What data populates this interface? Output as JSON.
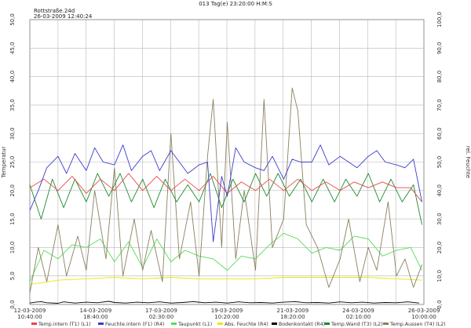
{
  "header": {
    "title": "013 Tag(e) 23:20:00 H:M:S",
    "file": "Rottstraße.24d",
    "date": "26-03-2009 12:40:24"
  },
  "chart_data": {
    "type": "line",
    "title": "013 Tag(e) 23:20:00 H:M:S",
    "ylabel_left": "Temperatur",
    "ylabel_right": "rel. Feuchte",
    "ylim_left": [
      0,
      50
    ],
    "ylim_right": [
      0,
      100
    ],
    "yticks_left": [
      "0,0",
      "5,0",
      "10,0",
      "15,0",
      "20,0",
      "25,0",
      "30,0",
      "35,0",
      "40,0",
      "45,0",
      "50,0"
    ],
    "yticks_right": [
      "0,0",
      "10,0",
      "20,0",
      "30,0",
      "40,0",
      "50,0",
      "60,0",
      "70,0",
      "80,0",
      "90,0",
      "100,0"
    ],
    "xlim_days": [
      0,
      13.97
    ],
    "x_labels": [
      {
        "date": "12-03-2009",
        "time": "10:40:00",
        "day": 0
      },
      {
        "date": "14-03-2009",
        "time": "18:40:00",
        "day": 2.333
      },
      {
        "date": "17-03-2009",
        "time": "02:30:00",
        "day": 4.66
      },
      {
        "date": "19-03-2009",
        "time": "10:20:00",
        "day": 6.986
      },
      {
        "date": "21-03-2009",
        "time": "18:20:00",
        "day": 9.319
      },
      {
        "date": "24-03-2009",
        "time": "02:10:00",
        "day": 11.646
      },
      {
        "date": "26-03-2009",
        "time": "10:00:00",
        "day": 13.972
      }
    ],
    "grid": true,
    "legend_position": "bottom",
    "series": [
      {
        "name": "Temp.intern (T1) (L1)",
        "color": "#e8474a",
        "axis": "left",
        "x": [
          0,
          0.5,
          1,
          1.5,
          2,
          2.5,
          3,
          3.5,
          4,
          4.5,
          5,
          5.5,
          6,
          6.5,
          7,
          7.5,
          8,
          8.5,
          9,
          9.5,
          10,
          10.5,
          11,
          11.5,
          12,
          12.5,
          13,
          13.5,
          13.9
        ],
        "y": [
          20.5,
          22,
          20,
          22.5,
          19.5,
          22,
          20,
          23,
          20,
          22.5,
          20,
          22,
          20,
          22.5,
          19.5,
          21.5,
          20,
          22,
          20,
          22,
          20,
          21.5,
          20,
          21.5,
          20.5,
          21.5,
          20.5,
          20.5,
          18
        ]
      },
      {
        "name": "Feuchte.intern (F1) (R4)",
        "color": "#3d3dcc",
        "axis": "right",
        "x": [
          0,
          0.3,
          0.6,
          1,
          1.3,
          1.6,
          2,
          2.3,
          2.6,
          3,
          3.3,
          3.6,
          4,
          4.3,
          4.6,
          5,
          5.3,
          5.6,
          6,
          6.3,
          6.5,
          6.8,
          7,
          7.3,
          7.6,
          8,
          8.3,
          8.6,
          9,
          9.3,
          9.6,
          10,
          10.3,
          10.6,
          11,
          11.3,
          11.6,
          12,
          12.3,
          12.6,
          13,
          13.3,
          13.6,
          13.9
        ],
        "y": [
          33,
          40,
          48,
          52,
          46,
          53,
          47,
          55,
          50,
          49,
          56,
          47,
          52,
          54,
          47,
          54,
          50,
          46,
          49,
          50,
          22,
          45,
          38,
          55,
          50,
          48,
          47,
          52,
          44,
          51,
          50,
          50,
          56,
          49,
          52,
          50,
          48,
          52,
          54,
          50,
          49,
          48,
          51,
          36
        ]
      },
      {
        "name": "Taupunkt (L1)",
        "color": "#55dd55",
        "axis": "left",
        "x": [
          0,
          0.5,
          1,
          1.5,
          2,
          2.5,
          3,
          3.5,
          4,
          4.5,
          5,
          5.5,
          6,
          6.5,
          7,
          7.5,
          8,
          8.5,
          9,
          9.5,
          10,
          10.5,
          11,
          11.5,
          12,
          12.5,
          13,
          13.5,
          13.9
        ],
        "y": [
          4,
          9.5,
          8,
          10.5,
          10,
          11.5,
          7.5,
          11,
          6.5,
          11.5,
          7.5,
          9.5,
          8.5,
          8,
          6,
          8.5,
          8,
          10.5,
          12.5,
          11.5,
          9,
          10,
          9.5,
          12,
          11.5,
          8.5,
          9.5,
          10,
          6
        ]
      },
      {
        "name": "Abs. Feuchte (R4)",
        "color": "#e8e800",
        "axis": "right",
        "x": [
          0,
          1,
          2,
          3,
          4,
          5,
          6,
          7,
          8,
          9,
          10,
          11,
          12,
          13,
          13.9
        ],
        "y": [
          7,
          8.5,
          9,
          9.5,
          9,
          9.5,
          9,
          9,
          9,
          9.5,
          9.5,
          9.5,
          9.5,
          9,
          8.5
        ]
      },
      {
        "name": "Bodenkontakt (R4)",
        "color": "#000000",
        "axis": "right",
        "x": [
          0,
          0.2,
          0.4,
          0.6,
          1,
          1.2,
          1.6,
          2,
          2.4,
          2.8,
          3,
          3.4,
          3.8,
          4.2,
          4.6,
          5,
          5.4,
          5.8,
          6.2,
          6.6,
          7,
          7.4,
          7.8,
          8.2,
          8.6,
          9,
          9.4,
          9.8,
          10.2,
          10.6,
          11,
          11.4,
          11.8,
          12.2,
          12.6,
          13,
          13.4,
          13.8
        ],
        "y": [
          0.5,
          0.8,
          1,
          0.6,
          0.4,
          0.9,
          0.5,
          0.8,
          0.6,
          1.1,
          0.7,
          0.5,
          0.8,
          0.6,
          0.9,
          0.5,
          0.7,
          1,
          0.6,
          0.8,
          0.5,
          0.9,
          0.6,
          0.7,
          0.5,
          0.8,
          1,
          0.6,
          0.7,
          0.5,
          0.9,
          0.6,
          0.8,
          0.5,
          0.7,
          0.6,
          0.9,
          0.5
        ]
      },
      {
        "name": "Temp.Wand (T3) (L2)",
        "color": "#1e8a2e",
        "axis": "left",
        "x": [
          0,
          0.4,
          0.8,
          1.2,
          1.6,
          2,
          2.4,
          2.8,
          3.2,
          3.6,
          4,
          4.4,
          4.8,
          5.2,
          5.6,
          6,
          6.4,
          6.8,
          7.2,
          7.6,
          8,
          8.4,
          8.8,
          9.2,
          9.6,
          10,
          10.4,
          10.8,
          11.2,
          11.6,
          12,
          12.4,
          12.8,
          13.2,
          13.6,
          13.9
        ],
        "y": [
          21,
          15,
          22,
          17,
          22,
          18,
          23,
          19,
          23,
          18,
          22,
          17,
          22,
          18,
          21,
          18,
          23,
          17,
          22,
          18,
          23,
          19,
          23,
          19,
          22,
          18,
          22,
          18,
          22,
          19,
          23,
          18,
          22,
          18,
          21,
          14
        ]
      },
      {
        "name": "Temp.Aussen (T4) (L2)",
        "color": "#8a8060",
        "axis": "left",
        "x": [
          0,
          0.3,
          0.6,
          1,
          1.3,
          1.7,
          2,
          2.3,
          2.7,
          3,
          3.3,
          3.7,
          4,
          4.3,
          4.7,
          5,
          5.3,
          5.7,
          6,
          6.3,
          6.5,
          6.8,
          7,
          7.3,
          7.6,
          8,
          8.3,
          8.6,
          9,
          9.3,
          9.5,
          9.8,
          10.2,
          10.6,
          11,
          11.3,
          11.7,
          12,
          12.3,
          12.7,
          13,
          13.3,
          13.6,
          13.9
        ],
        "y": [
          2,
          10,
          4,
          14,
          5,
          12,
          6,
          20,
          8,
          24,
          5,
          15,
          6,
          13,
          4,
          30,
          8,
          18,
          5,
          26,
          36,
          10,
          32,
          8,
          20,
          6,
          36,
          10,
          15,
          38,
          34,
          14,
          10,
          3,
          8,
          15,
          4,
          10,
          6,
          18,
          5,
          8,
          3,
          7
        ]
      }
    ]
  }
}
